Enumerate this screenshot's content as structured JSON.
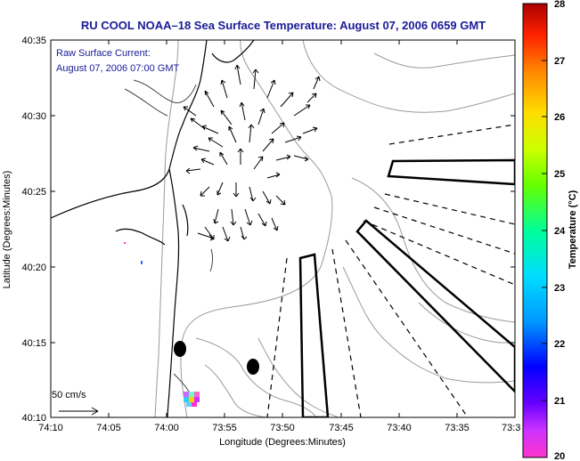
{
  "map": {
    "title": "RU COOL  NOAA–18  Sea Surface Temperature:  August 07, 2006 0659 GMT",
    "annotation_line1": "Raw Surface Current:",
    "annotation_line2": "August 07, 2006 07:00 GMT",
    "scale_label": "50 cm/s",
    "xlabel": "Longitude (Degrees:Minutes)",
    "ylabel": "Latitude (Degrees:Minutes)",
    "x_ticks": [
      "74:10",
      "74:05",
      "74:00",
      "73:55",
      "73:50",
      "73:45",
      "73:40",
      "73:35",
      "73:3"
    ],
    "y_ticks": [
      "40:35",
      "40:30",
      "40:25",
      "40:20",
      "40:15",
      "40:10"
    ],
    "colorbar": {
      "label": "Temperature (°C)",
      "ticks": [
        "28",
        "27",
        "26",
        "25",
        "24",
        "23",
        "22",
        "21",
        "20"
      ],
      "range": [
        20,
        28
      ]
    },
    "colors": {
      "title": "#1a1a99",
      "contour": "#9a9a9a",
      "coast": "#000000"
    }
  }
}
